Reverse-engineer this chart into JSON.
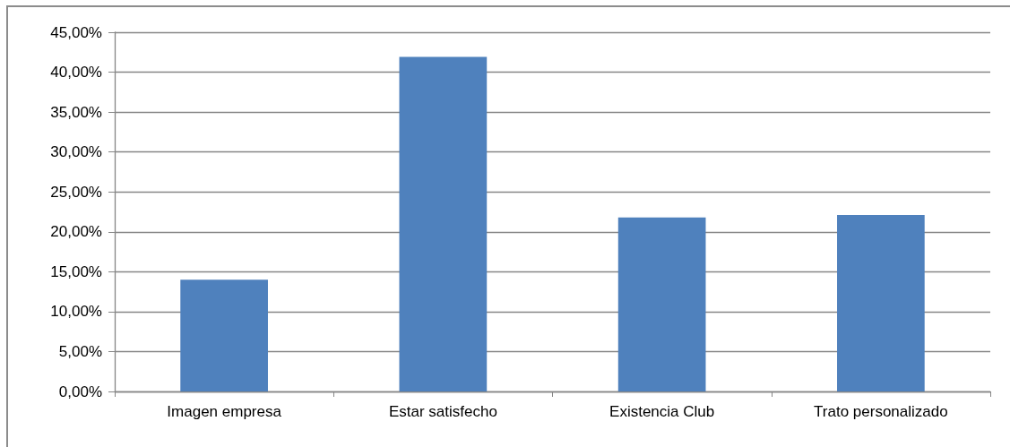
{
  "chart_data": {
    "type": "bar",
    "categories": [
      "Imagen empresa",
      "Estar satisfecho",
      "Existencia Club",
      "Trato personalizado"
    ],
    "values": [
      14.0,
      41.9,
      21.8,
      22.1
    ],
    "color": "#4f81bd",
    "ylim": [
      0,
      45
    ],
    "yticks": [
      {
        "value": 0,
        "label": "0,00%"
      },
      {
        "value": 5,
        "label": "5,00%"
      },
      {
        "value": 10,
        "label": "10,00%"
      },
      {
        "value": 15,
        "label": "15,00%"
      },
      {
        "value": 20,
        "label": "20,00%"
      },
      {
        "value": 25,
        "label": "25,00%"
      },
      {
        "value": 30,
        "label": "30,00%"
      },
      {
        "value": 35,
        "label": "35,00%"
      },
      {
        "value": 40,
        "label": "40,00%"
      },
      {
        "value": 45,
        "label": "45,00%"
      }
    ],
    "grid": "y"
  }
}
